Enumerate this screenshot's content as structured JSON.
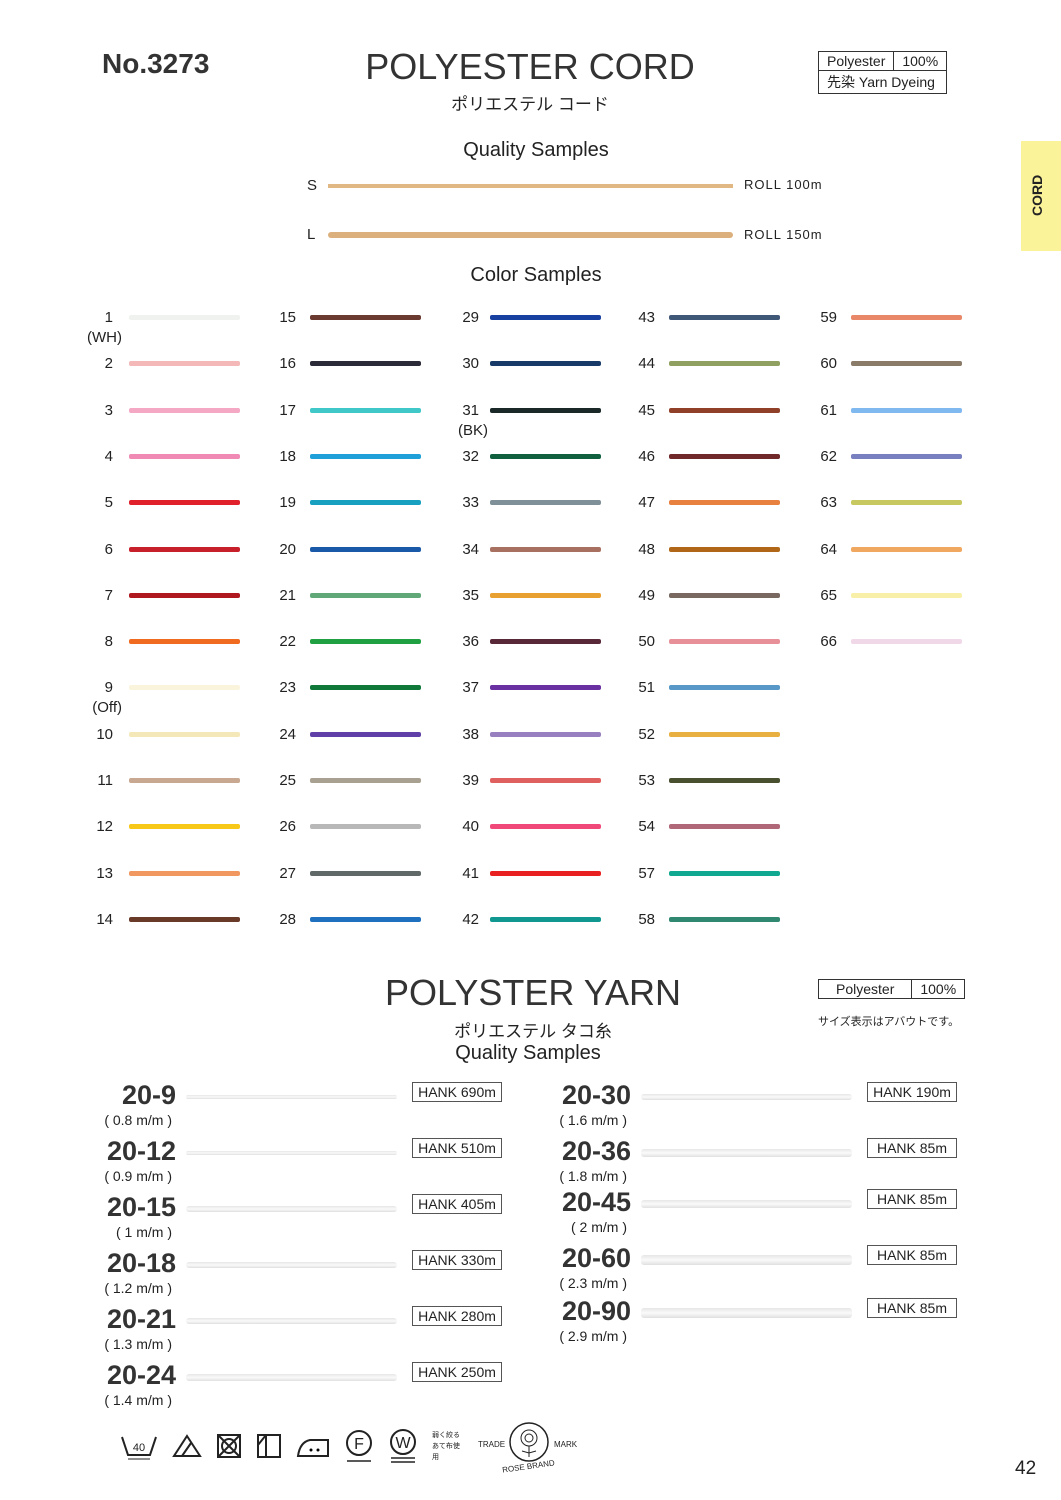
{
  "header": {
    "number": "No.3273",
    "title": "POLYESTER CORD",
    "subtitle_jp": "ポリエステル コード",
    "material": "Polyester",
    "percent": "100%",
    "dyeing": "先染 Yarn Dyeing",
    "side_tab": "CORD",
    "side_tab_color": "#fbf39a"
  },
  "quality": {
    "heading": "Quality Samples",
    "items": [
      {
        "size": "S",
        "label": "ROLL 100m",
        "color": "#e1b784"
      },
      {
        "size": "L",
        "label": "ROLL 150m",
        "color": "#e1b784"
      }
    ]
  },
  "colors": {
    "heading": "Color Samples",
    "columns": [
      [
        {
          "n": "1",
          "sub": "(WH)",
          "c": "#f0f2f0"
        },
        {
          "n": "2",
          "c": "#f4b8b8"
        },
        {
          "n": "3",
          "c": "#f4a8c4"
        },
        {
          "n": "4",
          "c": "#f08ab4"
        },
        {
          "n": "5",
          "c": "#e0202a"
        },
        {
          "n": "6",
          "c": "#c8202a"
        },
        {
          "n": "7",
          "c": "#b01820"
        },
        {
          "n": "8",
          "c": "#f06a20"
        },
        {
          "n": "9",
          "sub": "(Off)",
          "c": "#fbf4dc"
        },
        {
          "n": "10",
          "c": "#f4e8b8"
        },
        {
          "n": "11",
          "c": "#c8a890"
        },
        {
          "n": "12",
          "c": "#f8c818"
        },
        {
          "n": "13",
          "c": "#f09860"
        },
        {
          "n": "14",
          "c": "#6a3a28"
        }
      ],
      [
        {
          "n": "15",
          "c": "#6a3a30"
        },
        {
          "n": "16",
          "c": "#2a2a38"
        },
        {
          "n": "17",
          "c": "#40c8c8"
        },
        {
          "n": "18",
          "c": "#20a0d8"
        },
        {
          "n": "19",
          "c": "#18a0c0"
        },
        {
          "n": "20",
          "c": "#1a58a8"
        },
        {
          "n": "21",
          "c": "#60a878"
        },
        {
          "n": "22",
          "c": "#20a040"
        },
        {
          "n": "23",
          "c": "#107838"
        },
        {
          "n": "24",
          "c": "#6040a8"
        },
        {
          "n": "25",
          "c": "#a8a090"
        },
        {
          "n": "26",
          "c": "#b8b8b8"
        },
        {
          "n": "27",
          "c": "#606868"
        },
        {
          "n": "28",
          "c": "#2070c0"
        }
      ],
      [
        {
          "n": "29",
          "c": "#1840a0"
        },
        {
          "n": "30",
          "c": "#183a68"
        },
        {
          "n": "31",
          "sub": "(BK)",
          "c": "#1a2828"
        },
        {
          "n": "32",
          "c": "#106040"
        },
        {
          "n": "33",
          "c": "#809098"
        },
        {
          "n": "34",
          "c": "#a87060"
        },
        {
          "n": "35",
          "c": "#e8a030"
        },
        {
          "n": "36",
          "c": "#582838"
        },
        {
          "n": "37",
          "c": "#6830a0"
        },
        {
          "n": "38",
          "c": "#9880c0"
        },
        {
          "n": "39",
          "c": "#e06060"
        },
        {
          "n": "40",
          "c": "#f04878"
        },
        {
          "n": "41",
          "c": "#e82020"
        },
        {
          "n": "42",
          "c": "#109890"
        }
      ],
      [
        {
          "n": "43",
          "c": "#405878"
        },
        {
          "n": "44",
          "c": "#90a060"
        },
        {
          "n": "45",
          "c": "#904028"
        },
        {
          "n": "46",
          "c": "#702828"
        },
        {
          "n": "47",
          "c": "#e88040"
        },
        {
          "n": "48",
          "c": "#b06818"
        },
        {
          "n": "49",
          "c": "#786860"
        },
        {
          "n": "50",
          "c": "#e89098"
        },
        {
          "n": "51",
          "c": "#5898c8"
        },
        {
          "n": "52",
          "c": "#e8b040"
        },
        {
          "n": "53",
          "c": "#485030"
        },
        {
          "n": "54",
          "c": "#b06878"
        },
        {
          "n": "57",
          "c": "#10a890"
        },
        {
          "n": "58",
          "c": "#308870"
        }
      ],
      [
        {
          "n": "59",
          "c": "#e88868"
        },
        {
          "n": "60",
          "c": "#8a7a68"
        },
        {
          "n": "61",
          "c": "#80b8f0"
        },
        {
          "n": "62",
          "c": "#7880c0"
        },
        {
          "n": "63",
          "c": "#c8c860"
        },
        {
          "n": "64",
          "c": "#f0a860"
        },
        {
          "n": "65",
          "c": "#f8f0a8"
        },
        {
          "n": "66",
          "c": "#f0d8e8"
        }
      ]
    ]
  },
  "yarn": {
    "title": "POLYSTER YARN",
    "subtitle_jp": "ポリエステル タコ糸",
    "heading": "Quality Samples",
    "material": "Polyester",
    "percent": "100%",
    "note": "サイズ表示はアバウトです。",
    "left": [
      {
        "name": "20-9",
        "size": "( 0.8 m/m )",
        "hank": "HANK 690m"
      },
      {
        "name": "20-12",
        "size": "( 0.9 m/m )",
        "hank": "HANK 510m"
      },
      {
        "name": "20-15",
        "size": "( 1 m/m )",
        "hank": "HANK 405m"
      },
      {
        "name": "20-18",
        "size": "( 1.2 m/m )",
        "hank": "HANK 330m"
      },
      {
        "name": "20-21",
        "size": "( 1.3 m/m )",
        "hank": "HANK 280m"
      },
      {
        "name": "20-24",
        "size": "( 1.4 m/m )",
        "hank": "HANK 250m"
      }
    ],
    "right": [
      {
        "name": "20-30",
        "size": "( 1.6 m/m )",
        "hank": "HANK 190m"
      },
      {
        "name": "20-36",
        "size": "( 1.8 m/m )",
        "hank": "HANK 85m"
      },
      {
        "name": "20-45",
        "size": "( 2 m/m )",
        "hank": "HANK 85m"
      },
      {
        "name": "20-60",
        "size": "( 2.3 m/m )",
        "hank": "HANK 85m"
      },
      {
        "name": "20-90",
        "size": "( 2.9 m/m )",
        "hank": "HANK 85m"
      }
    ]
  },
  "care": {
    "wash_temp": "40",
    "iron_note": "弱く絞る あて布使用",
    "F": "F",
    "W": "W"
  },
  "logo": {
    "left": "TRADE",
    "right": "MARK",
    "bottom": "ROSE BRAND"
  },
  "page_number": "42"
}
